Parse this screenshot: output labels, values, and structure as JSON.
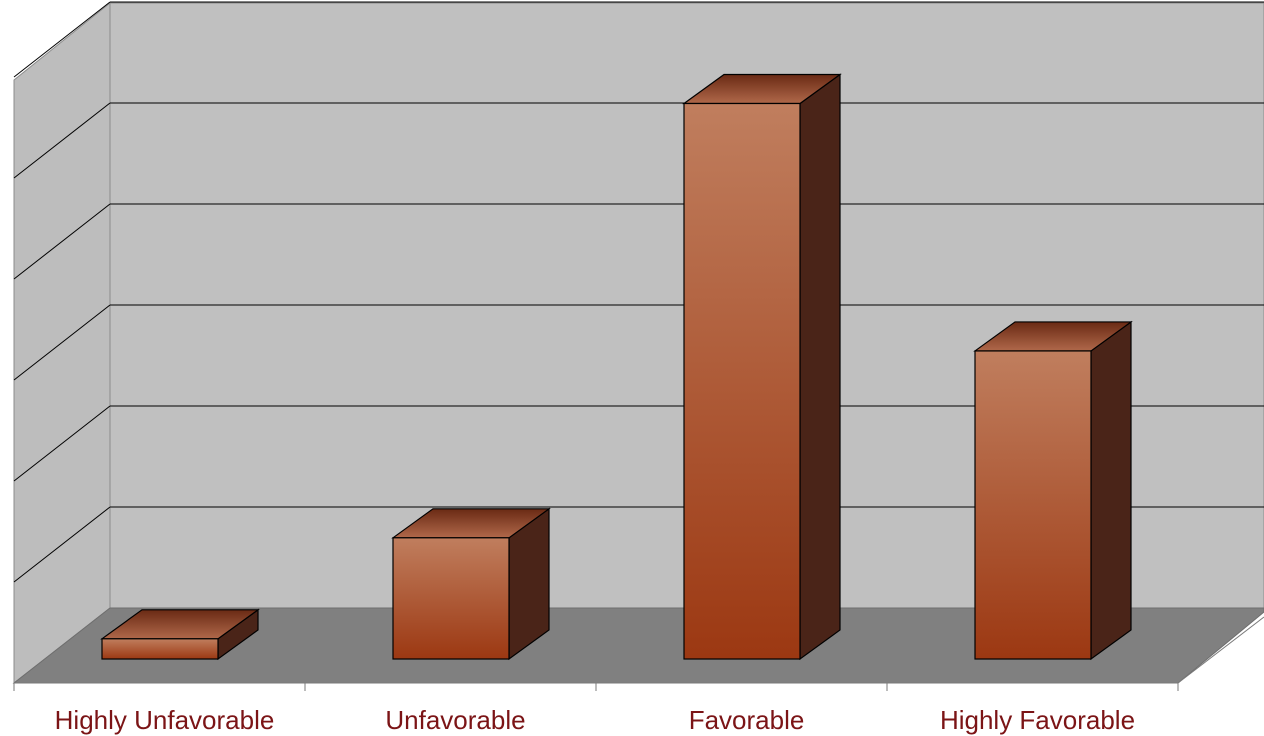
{
  "chart_data": {
    "type": "bar",
    "subtype": "3d-column",
    "categories": [
      "Highly Unfavorable",
      "Unfavorable",
      "Favorable",
      "Highly Favorable"
    ],
    "values": [
      0.2,
      1.2,
      5.5,
      3.05
    ],
    "ylim": [
      0,
      6
    ],
    "grid": true,
    "legend": "none",
    "title": "",
    "xlabel": "",
    "ylabel": "",
    "colors": {
      "bar_front_top": "#c07e5e",
      "bar_front_bottom": "#9c3812",
      "bar_top_light": "#b0684a",
      "bar_top_dark": "#6a2a14",
      "bar_side": "#4a2418",
      "back_wall": "#c0c0c0",
      "side_wall": "#bdbdbd",
      "floor": "#808080",
      "label": "#7b1416"
    }
  }
}
